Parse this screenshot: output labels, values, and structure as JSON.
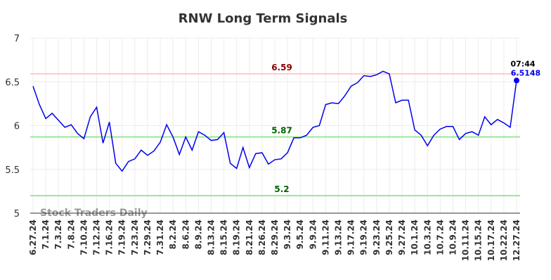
{
  "chart_data": {
    "type": "line",
    "title": "RNW Long Term Signals",
    "watermark": "Stock Traders Daily",
    "categories": [
      "6.27.24",
      null,
      "7.1.24",
      null,
      "7.3.24",
      null,
      "7.8.24",
      null,
      "7.10.24",
      null,
      "7.12.24",
      null,
      "7.16.24",
      null,
      "7.19.24",
      null,
      "7.23.24",
      null,
      "7.29.24",
      null,
      "7.31.24",
      null,
      "8.2.24",
      null,
      "8.6.24",
      null,
      "8.9.24",
      null,
      "8.13.24",
      null,
      "8.15.24",
      null,
      "8.19.24",
      null,
      "8.21.24",
      null,
      "8.26.24",
      null,
      "8.29.24",
      null,
      "9.3.24",
      null,
      "9.5.24",
      null,
      "9.9.24",
      null,
      "9.11.24",
      null,
      "9.13.24",
      null,
      "9.17.24",
      null,
      "9.19.24",
      null,
      "9.23.24",
      null,
      "9.25.24",
      null,
      "9.27.24",
      null,
      "10.1.24",
      null,
      "10.3.24",
      null,
      "10.7.24",
      null,
      "10.9.24",
      null,
      "10.11.24",
      null,
      "10.15.24",
      null,
      "10.17.24",
      null,
      "10.22.24",
      null,
      "12.27.24"
    ],
    "series": [
      {
        "name": "RNW",
        "color": "#0000ee",
        "values": [
          6.45,
          6.24,
          6.08,
          6.14,
          6.06,
          5.98,
          6.01,
          5.91,
          5.85,
          6.1,
          6.21,
          5.8,
          6.04,
          5.57,
          5.48,
          5.59,
          5.62,
          5.72,
          5.66,
          5.71,
          5.81,
          6.01,
          5.87,
          5.67,
          5.87,
          5.72,
          5.93,
          5.89,
          5.83,
          5.84,
          5.92,
          5.57,
          5.51,
          5.75,
          5.52,
          5.68,
          5.69,
          5.56,
          5.61,
          5.62,
          5.69,
          5.86,
          5.86,
          5.89,
          5.98,
          6.0,
          6.24,
          6.26,
          6.25,
          6.34,
          6.45,
          6.49,
          6.57,
          6.56,
          6.58,
          6.62,
          6.59,
          6.26,
          6.29,
          6.29,
          5.95,
          5.89,
          5.77,
          5.89,
          5.96,
          5.99,
          5.99,
          5.84,
          5.91,
          5.93,
          5.89,
          6.1,
          6.01,
          6.07,
          6.03,
          5.98,
          6.5148
        ]
      }
    ],
    "last_point_annotation": "07:44",
    "hlines": [
      {
        "value": 6.59,
        "color": "#ffcccc",
        "label_color": "#8b0000"
      },
      {
        "value": 5.87,
        "color": "#99e699",
        "label_color": "#006400"
      },
      {
        "value": 5.2,
        "color": "#99e699",
        "label_color": "#006400"
      }
    ],
    "ylim": [
      5,
      7
    ],
    "yticks": [
      5,
      5.5,
      6,
      6.5,
      7
    ],
    "grid": true
  }
}
